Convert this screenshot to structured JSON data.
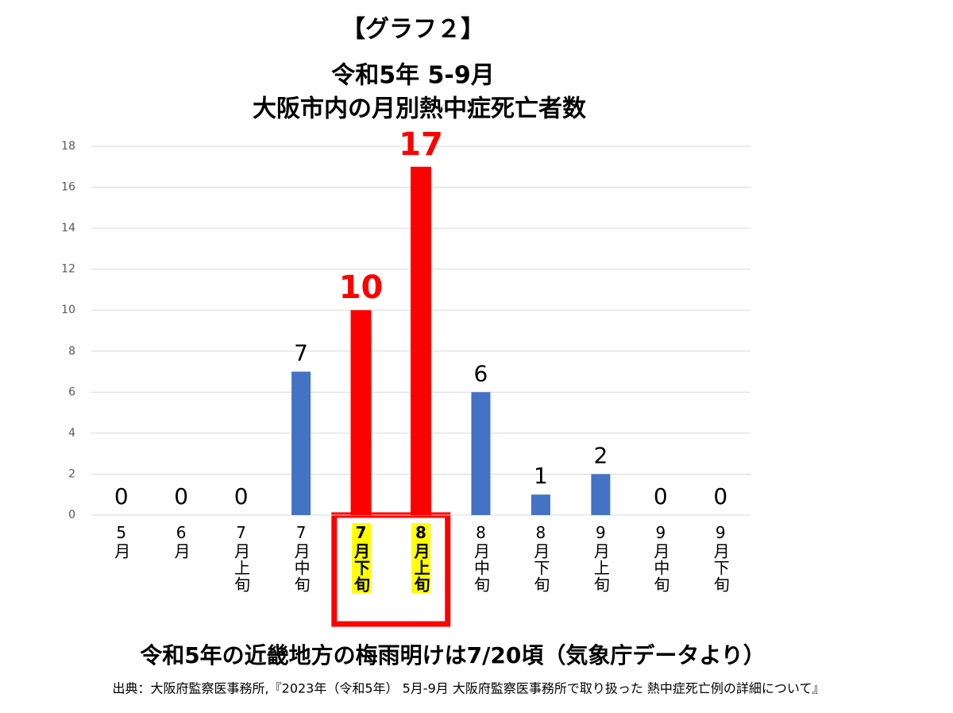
{
  "chart_data": {
    "type": "bar",
    "header": "【グラフ２】",
    "title": "令和5年 5-9月",
    "subtitle": "大阪市内の月別熱中症死亡者数",
    "annotation": "令和5年の近畿地方の梅雨明けは7/20頃（気象庁データより）",
    "source": "出典：大阪府監察医事務所,『2023年（令和5年） 5月-9月 大阪府監察医事務所で取り扱った 熱中症死亡例の詳細について』",
    "categories": [
      "5月",
      "6月",
      "7月上旬",
      "7月中旬",
      "7月下旬",
      "8月上旬",
      "8月中旬",
      "8月下旬",
      "9月上旬",
      "9月中旬",
      "9月下旬"
    ],
    "values": [
      0,
      0,
      0,
      7,
      10,
      17,
      6,
      1,
      2,
      0,
      0
    ],
    "colors": [
      "#4472c4",
      "#4472c4",
      "#4472c4",
      "#4472c4",
      "#ff0000",
      "#ff0000",
      "#4472c4",
      "#4472c4",
      "#4472c4",
      "#4472c4",
      "#4472c4"
    ],
    "highlight": [
      4,
      5
    ],
    "ylim": [
      0,
      18
    ],
    "yticks": [
      0,
      2,
      4,
      6,
      8,
      10,
      12,
      14,
      16,
      18
    ],
    "grid": true
  }
}
